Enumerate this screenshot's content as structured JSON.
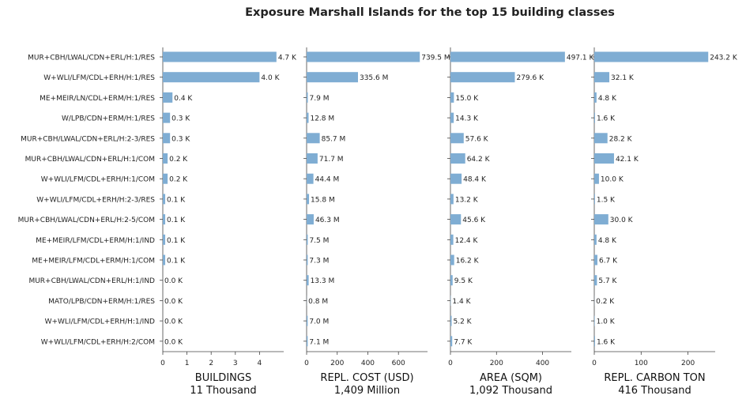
{
  "chart_data": {
    "type": "bar",
    "title": "Exposure Marshall Islands for the top 15 building classes",
    "orientation": "horizontal",
    "categories": [
      "MUR+CBH/LWAL/CDN+ERL/H:1/RES",
      "W+WLI/LFM/CDL+ERH/H:1/RES",
      "ME+MEIR/LN/CDL+ERM/H:1/RES",
      "W/LPB/CDN+ERM/H:1/RES",
      "MUR+CBH/LWAL/CDN+ERL/H:2-3/RES",
      "MUR+CBH/LWAL/CDN+ERL/H:1/COM",
      "W+WLI/LFM/CDL+ERH/H:1/COM",
      "W+WLI/LFM/CDL+ERH/H:2-3/RES",
      "MUR+CBH/LWAL/CDN+ERL/H:2-5/COM",
      "ME+MEIR/LFM/CDL+ERM/H:1/IND",
      "ME+MEIR/LFM/CDL+ERM/H:1/COM",
      "MUR+CBH/LWAL/CDN+ERL/H:1/IND",
      "MATO/LPB/CDN+ERM/H:1/RES",
      "W+WLI/LFM/CDL+ERH/H:1/IND",
      "W+WLI/LFM/CDL+ERH/H:2/COM"
    ],
    "bar_color": "#7fadd3",
    "panels": [
      {
        "xlabel": "BUILDINGS",
        "total": "11 Thousand",
        "xlim": [
          0,
          5
        ],
        "ticks": [
          0,
          1,
          2,
          3,
          4
        ],
        "values": [
          4.7,
          4.0,
          0.4,
          0.3,
          0.3,
          0.2,
          0.2,
          0.1,
          0.1,
          0.1,
          0.1,
          0.0,
          0.0,
          0.0,
          0.0
        ],
        "labels": [
          "4.7 K",
          "4.0 K",
          "0.4 K",
          "0.3 K",
          "0.3 K",
          "0.2 K",
          "0.2 K",
          "0.1 K",
          "0.1 K",
          "0.1 K",
          "0.1 K",
          "0.0 K",
          "0.0 K",
          "0.0 K",
          "0.0 K"
        ]
      },
      {
        "xlabel": "REPL. COST (USD)",
        "total": "1,409 Million",
        "xlim": [
          0,
          790
        ],
        "ticks": [
          0,
          200,
          400,
          600
        ],
        "values": [
          739.5,
          335.6,
          7.9,
          12.8,
          85.7,
          71.7,
          44.4,
          15.8,
          46.3,
          7.5,
          7.3,
          13.3,
          0.8,
          7.0,
          7.1
        ],
        "labels": [
          "739.5 M",
          "335.6 M",
          "7.9 M",
          "12.8 M",
          "85.7 M",
          "71.7 M",
          "44.4 M",
          "15.8 M",
          "46.3 M",
          "7.5 M",
          "7.3 M",
          "13.3 M",
          "0.8 M",
          "7.0 M",
          "7.1 M"
        ]
      },
      {
        "xlabel": "AREA (SQM)",
        "total": "1,092 Thousand",
        "xlim": [
          0,
          525
        ],
        "ticks": [
          0,
          200,
          400
        ],
        "values": [
          497.1,
          279.6,
          15.0,
          14.3,
          57.6,
          64.2,
          48.4,
          13.2,
          45.6,
          12.4,
          16.2,
          9.5,
          1.4,
          5.2,
          7.7
        ],
        "labels": [
          "497.1 K",
          "279.6 K",
          "15.0 K",
          "14.3 K",
          "57.6 K",
          "64.2 K",
          "48.4 K",
          "13.2 K",
          "45.6 K",
          "12.4 K",
          "16.2 K",
          "9.5 K",
          "1.4 K",
          "5.2 K",
          "7.7 K"
        ]
      },
      {
        "xlabel": "REPL. CARBON TON",
        "total": "416 Thousand",
        "xlim": [
          0,
          258
        ],
        "ticks": [
          0,
          100,
          200
        ],
        "values": [
          243.2,
          32.1,
          4.8,
          1.6,
          28.2,
          42.1,
          10.0,
          1.5,
          30.0,
          4.8,
          6.7,
          5.7,
          0.2,
          1.0,
          1.6
        ],
        "labels": [
          "243.2 K",
          "32.1 K",
          "4.8 K",
          "1.6 K",
          "28.2 K",
          "42.1 K",
          "10.0 K",
          "1.5 K",
          "30.0 K",
          "4.8 K",
          "6.7 K",
          "5.7 K",
          "0.2 K",
          "1.0 K",
          "1.6 K"
        ]
      }
    ]
  }
}
